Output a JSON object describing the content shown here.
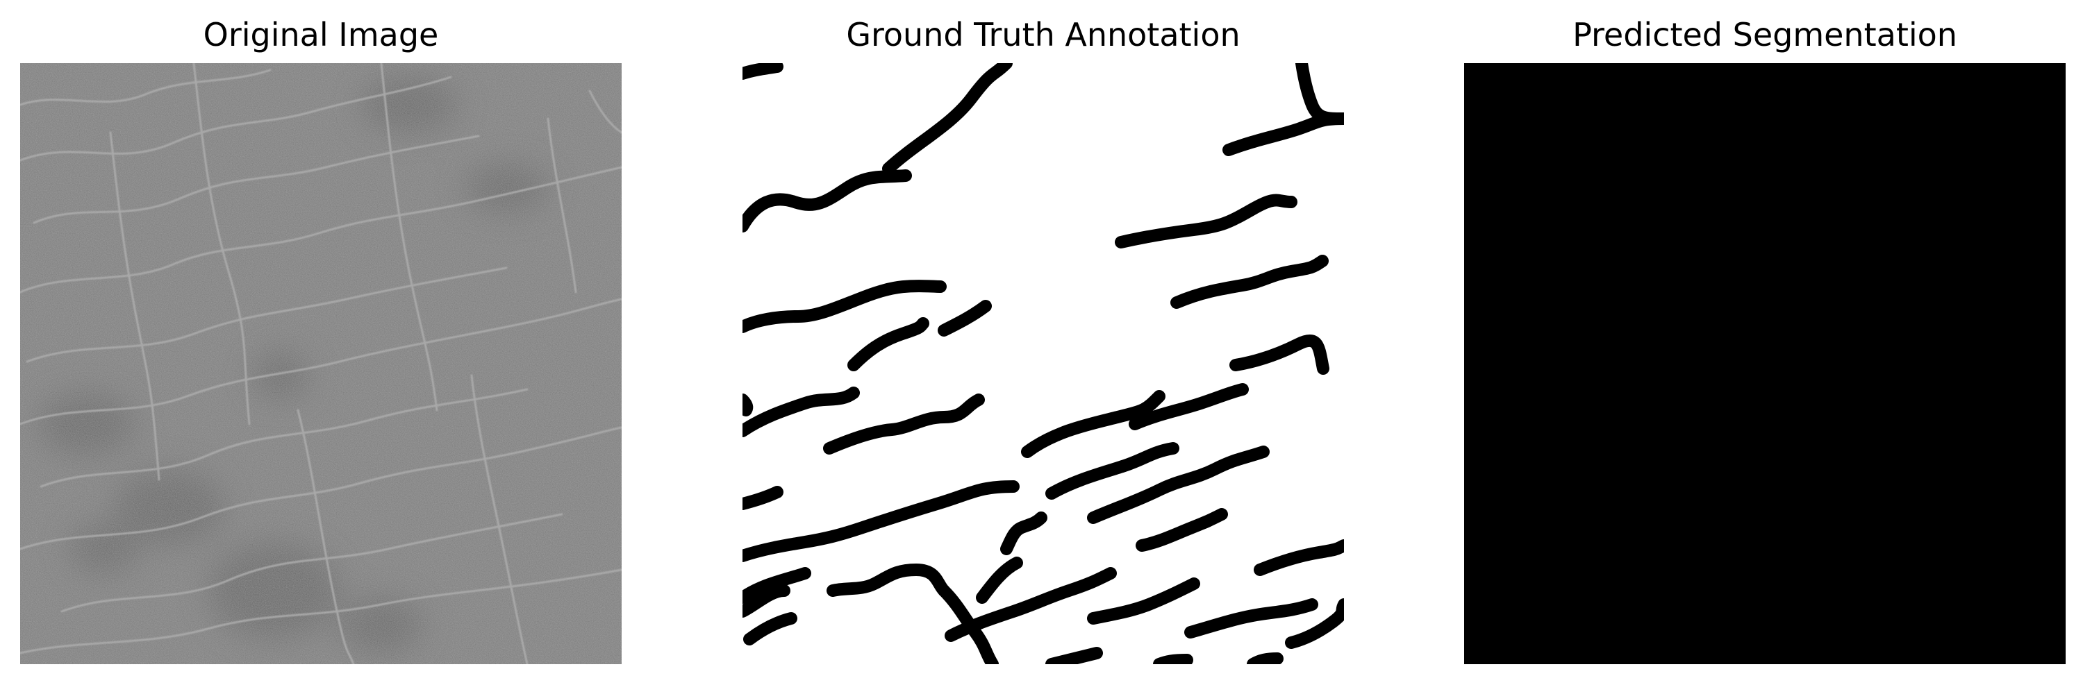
{
  "panels": [
    {
      "title": "Original Image"
    },
    {
      "title": "Ground Truth Annotation"
    },
    {
      "title": "Predicted Segmentation"
    }
  ],
  "colors": {
    "background": "#ffffff",
    "original_gray": "#787878",
    "mask_foreground": "#000000",
    "mask_background": "#ffffff",
    "prediction_fill": "#000000"
  }
}
